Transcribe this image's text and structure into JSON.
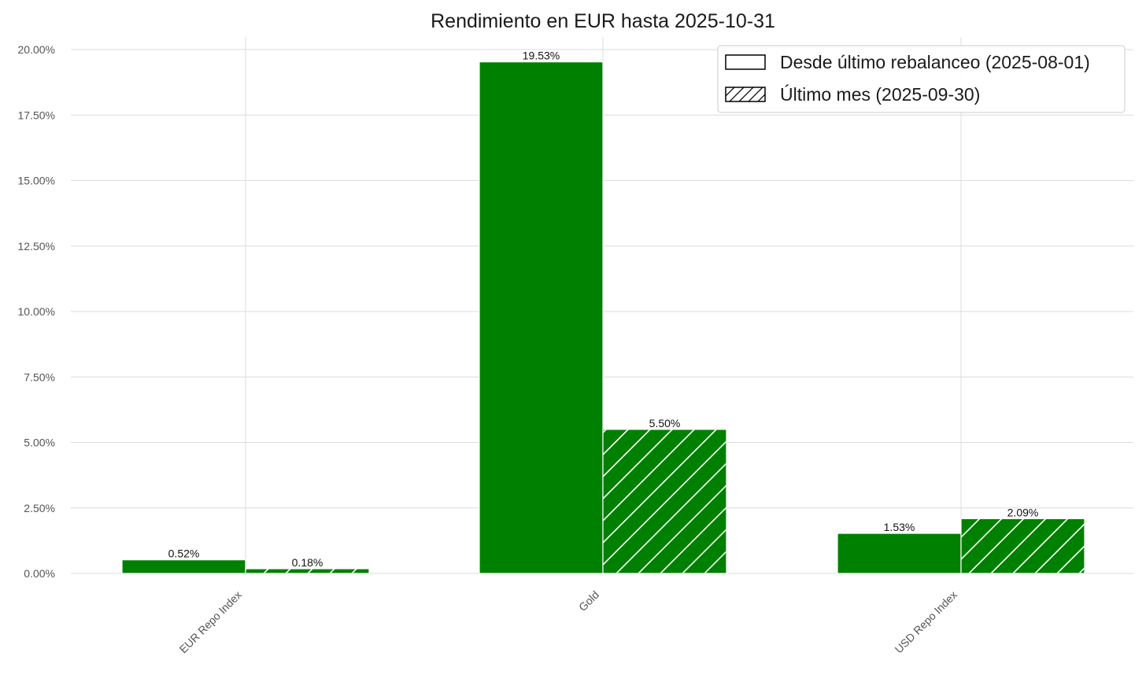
{
  "chart_data": {
    "type": "bar",
    "title": "Rendimiento en EUR hasta 2025-10-31",
    "xlabel": "",
    "ylabel": "",
    "categories": [
      "EUR Repo Index",
      "Gold",
      "USD Repo Index"
    ],
    "series": [
      {
        "name": "Desde último rebalanceo (2025-08-01)",
        "values": [
          0.52,
          19.53,
          1.53
        ],
        "labels": [
          "0.52%",
          "19.53%",
          "1.53%"
        ],
        "hatch": false
      },
      {
        "name": "Último mes (2025-09-30)",
        "values": [
          0.18,
          5.5,
          2.09
        ],
        "labels": [
          "0.18%",
          "5.50%",
          "2.09%"
        ],
        "hatch": true
      }
    ],
    "ylim": [
      0,
      20.5
    ],
    "yticks": [
      0,
      2.5,
      5,
      7.5,
      10,
      12.5,
      15,
      17.5,
      20
    ],
    "ytick_labels": [
      "0.00%",
      "2.50%",
      "5.00%",
      "7.50%",
      "10.00%",
      "12.50%",
      "15.00%",
      "17.50%",
      "20.00%"
    ],
    "bar_color": "#008000",
    "grid": true,
    "legend_position": "top-right"
  }
}
